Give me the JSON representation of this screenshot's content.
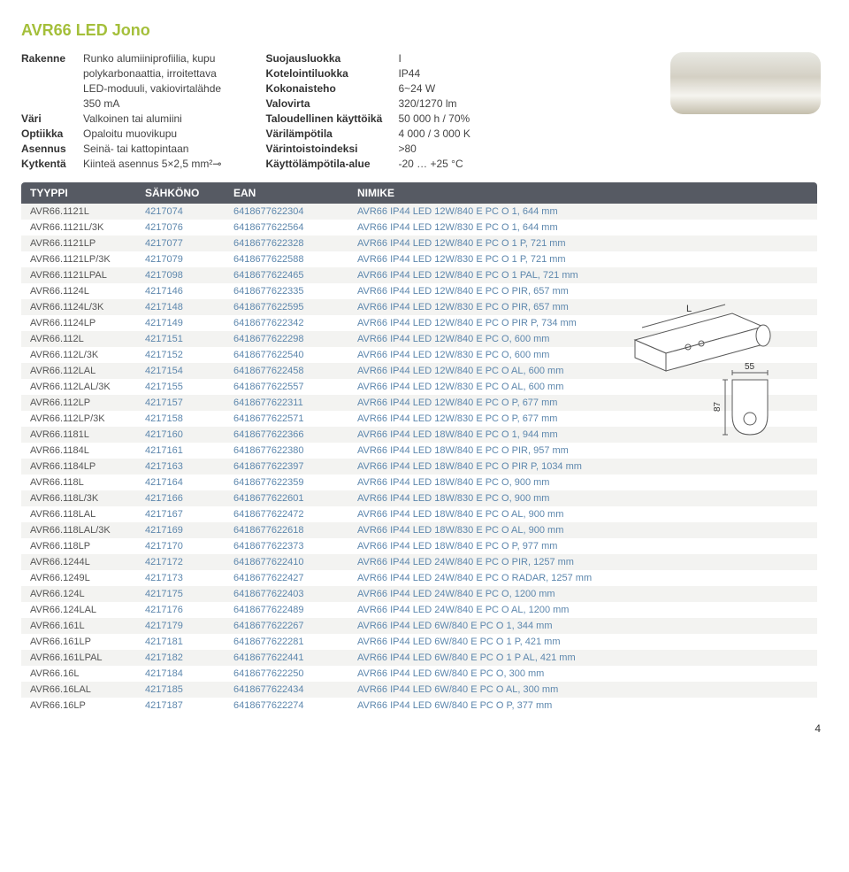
{
  "title": "AVR66 LED Jono",
  "specs_left": [
    {
      "key": "Rakenne",
      "val": "Runko alumiiniprofiilia, kupu"
    },
    {
      "key": "",
      "val": "polykarbonaattia, irroitettava"
    },
    {
      "key": "",
      "val": "LED-moduuli, vakiovirtalähde"
    },
    {
      "key": "",
      "val": "350 mA"
    },
    {
      "key": "Väri",
      "val": "Valkoinen tai alumiini"
    },
    {
      "key": "Optiikka",
      "val": "Opaloitu muovikupu"
    },
    {
      "key": "Asennus",
      "val": "Seinä- tai kattopintaan"
    },
    {
      "key": "Kytkentä",
      "val": "Kiinteä asennus 5×2,5 mm²⊸"
    }
  ],
  "specs_right": [
    {
      "key": "Suojausluokka",
      "val": "I"
    },
    {
      "key": "Kotelointiluokka",
      "val": "IP44"
    },
    {
      "key": "Kokonaisteho",
      "val": "6~24 W"
    },
    {
      "key": "Valovirta",
      "val": "320/1270 lm"
    },
    {
      "key": "Taloudellinen käyttöikä",
      "val": "50 000 h / 70%"
    },
    {
      "key": "Värilämpötila",
      "val": "4 000 / 3 000 K"
    },
    {
      "key": "Värintoistoindeksi",
      "val": ">80"
    },
    {
      "key": "Käyttölämpötila-alue",
      "val": "-20 … +25 °C"
    }
  ],
  "table": {
    "headers": [
      "TYYPPI",
      "SÄHKÖNO",
      "EAN",
      "NIMIKE"
    ],
    "rows": [
      [
        "AVR66.1121L",
        "4217074",
        "6418677622304",
        "AVR66 IP44 LED 12W/840 E PC O 1, 644 mm"
      ],
      [
        "AVR66.1121L/3K",
        "4217076",
        "6418677622564",
        "AVR66 IP44 LED 12W/830 E PC O 1, 644 mm"
      ],
      [
        "AVR66.1121LP",
        "4217077",
        "6418677622328",
        "AVR66 IP44 LED 12W/840 E PC O 1 P, 721 mm"
      ],
      [
        "AVR66.1121LP/3K",
        "4217079",
        "6418677622588",
        "AVR66 IP44 LED 12W/830 E PC O 1 P, 721 mm"
      ],
      [
        "AVR66.1121LPAL",
        "4217098",
        "6418677622465",
        "AVR66 IP44 LED 12W/840 E PC O 1 PAL, 721 mm"
      ],
      [
        "AVR66.1124L",
        "4217146",
        "6418677622335",
        "AVR66 IP44 LED 12W/840 E PC O PIR, 657 mm"
      ],
      [
        "AVR66.1124L/3K",
        "4217148",
        "6418677622595",
        "AVR66 IP44 LED 12W/830 E PC O PIR, 657 mm"
      ],
      [
        "AVR66.1124LP",
        "4217149",
        "6418677622342",
        "AVR66 IP44 LED 12W/840 E PC O PIR P, 734 mm"
      ],
      [
        "AVR66.112L",
        "4217151",
        "6418677622298",
        "AVR66 IP44 LED 12W/840 E PC O, 600 mm"
      ],
      [
        "AVR66.112L/3K",
        "4217152",
        "6418677622540",
        "AVR66 IP44 LED 12W/830 E PC O, 600 mm"
      ],
      [
        "AVR66.112LAL",
        "4217154",
        "6418677622458",
        "AVR66 IP44 LED 12W/840 E PC O AL, 600 mm"
      ],
      [
        "AVR66.112LAL/3K",
        "4217155",
        "6418677622557",
        "AVR66 IP44 LED 12W/830 E PC O AL, 600 mm"
      ],
      [
        "AVR66.112LP",
        "4217157",
        "6418677622311",
        "AVR66 IP44 LED 12W/840 E PC O P, 677 mm"
      ],
      [
        "AVR66.112LP/3K",
        "4217158",
        "6418677622571",
        "AVR66 IP44 LED 12W/830 E PC O P, 677 mm"
      ],
      [
        "AVR66.1181L",
        "4217160",
        "6418677622366",
        "AVR66 IP44 LED 18W/840 E PC O 1, 944 mm"
      ],
      [
        "AVR66.1184L",
        "4217161",
        "6418677622380",
        "AVR66 IP44 LED 18W/840 E PC O PIR, 957 mm"
      ],
      [
        "AVR66.1184LP",
        "4217163",
        "6418677622397",
        "AVR66 IP44 LED 18W/840 E PC O PIR P, 1034 mm"
      ],
      [
        "AVR66.118L",
        "4217164",
        "6418677622359",
        "AVR66 IP44 LED 18W/840 E PC O, 900 mm"
      ],
      [
        "AVR66.118L/3K",
        "4217166",
        "6418677622601",
        "AVR66 IP44 LED 18W/830 E PC O, 900 mm"
      ],
      [
        "AVR66.118LAL",
        "4217167",
        "6418677622472",
        "AVR66 IP44 LED 18W/840 E PC O AL, 900 mm"
      ],
      [
        "AVR66.118LAL/3K",
        "4217169",
        "6418677622618",
        "AVR66 IP44 LED 18W/830 E PC O AL, 900 mm"
      ],
      [
        "AVR66.118LP",
        "4217170",
        "6418677622373",
        "AVR66 IP44 LED 18W/840 E PC O P, 977 mm"
      ],
      [
        "AVR66.1244L",
        "4217172",
        "6418677622410",
        "AVR66 IP44 LED 24W/840 E PC O PIR, 1257 mm"
      ],
      [
        "AVR66.1249L",
        "4217173",
        "6418677622427",
        "AVR66 IP44 LED 24W/840 E PC O RADAR, 1257 mm"
      ],
      [
        "AVR66.124L",
        "4217175",
        "6418677622403",
        "AVR66 IP44 LED 24W/840 E PC O, 1200 mm"
      ],
      [
        "AVR66.124LAL",
        "4217176",
        "6418677622489",
        "AVR66 IP44 LED 24W/840 E PC O AL, 1200 mm"
      ],
      [
        "AVR66.161L",
        "4217179",
        "6418677622267",
        "AVR66 IP44 LED 6W/840 E PC O 1, 344 mm"
      ],
      [
        "AVR66.161LP",
        "4217181",
        "6418677622281",
        "AVR66 IP44 LED 6W/840 E PC O 1 P, 421 mm"
      ],
      [
        "AVR66.161LPAL",
        "4217182",
        "6418677622441",
        "AVR66 IP44 LED 6W/840 E PC O 1 P AL, 421 mm"
      ],
      [
        "AVR66.16L",
        "4217184",
        "6418677622250",
        "AVR66 IP44 LED 6W/840 E PC O, 300 mm"
      ],
      [
        "AVR66.16LAL",
        "4217185",
        "6418677622434",
        "AVR66 IP44 LED 6W/840 E PC O AL, 300 mm"
      ],
      [
        "AVR66.16LP",
        "4217187",
        "6418677622274",
        "AVR66 IP44 LED 6W/840 E PC O P,  377 mm"
      ]
    ]
  },
  "diagram": {
    "label_L": "L",
    "label_w": "55",
    "label_h": "87",
    "stroke": "#5a5a5a",
    "fill": "#ffffff"
  },
  "page_number": "4",
  "colors": {
    "title": "#a4bf3a",
    "header_bg": "#565a63",
    "row_odd": "#f3f3f1",
    "row_even": "#ffffff",
    "link": "#5d87ad"
  }
}
